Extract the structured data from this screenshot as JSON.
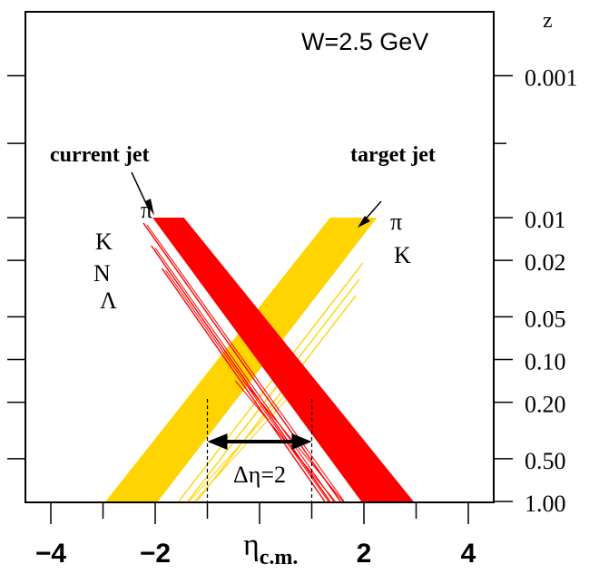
{
  "chart_data": {
    "type": "area",
    "title": "",
    "annotation_energy": "W=2.5 GeV",
    "xlabel_main": "η",
    "xlabel_sub": "c.m.",
    "xlim": [
      -5,
      5
    ],
    "x_ticks": [
      -4,
      -2,
      2,
      4
    ],
    "x_tick_labels": [
      "−4",
      "−2",
      "2",
      "4"
    ],
    "right_axis_title": "z",
    "right_axis_ticks": [
      0.001,
      0.01,
      0.02,
      0.05,
      0.1,
      0.2,
      0.5,
      1.0
    ],
    "right_axis_tick_labels": [
      "0.001",
      "0.01",
      "0.02",
      "0.05",
      "0.10",
      "0.20",
      "0.50",
      "1.00"
    ],
    "colors": {
      "current": "#ff0000",
      "target": "#ffd400",
      "axis": "#000000"
    },
    "current_jet": {
      "label": "current jet",
      "band": {
        "name": "π",
        "x_at_z_0_01": [
          -2.05,
          -1.45
        ],
        "x_at_z_1": [
          1.95,
          2.95
        ]
      },
      "lines": [
        {
          "name": "K",
          "x_at_z_0_01": -2.3,
          "x_at_z_1": 1.55
        },
        {
          "name": "N",
          "x_at_z_0_01": -2.45,
          "x_at_z_1": 1.35
        },
        {
          "name": "Λ",
          "x_at_z_0_01": -2.55,
          "x_at_z_1": 1.25
        }
      ],
      "extra_lines_x_at_z_1": [
        1.45,
        1.6
      ]
    },
    "target_jet": {
      "label": "target jet",
      "band": {
        "name": "π",
        "x_at_z_0_01": [
          1.35,
          2.25
        ],
        "x_at_z_1": [
          -2.95,
          -1.95
        ]
      },
      "lines": [
        {
          "name": "K",
          "x_at_z_0_01": 2.65,
          "x_at_z_1": -1.55
        }
      ],
      "extra_lines_x_at_z_1": [
        -1.35,
        -1.25
      ]
    },
    "delta_eta": {
      "label": "Δη=2",
      "x_from": -1.0,
      "x_to": 1.0
    }
  }
}
